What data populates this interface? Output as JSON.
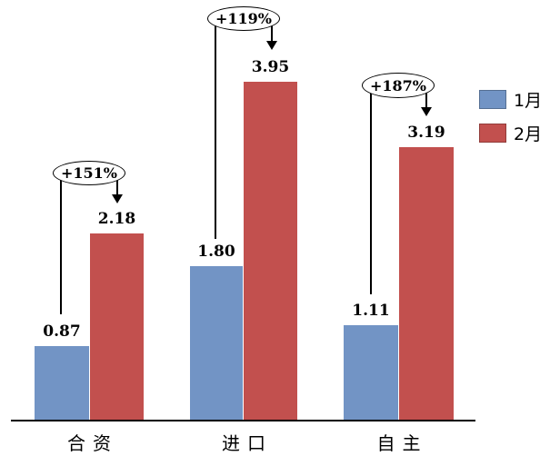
{
  "chart_data": {
    "type": "bar",
    "title": "",
    "categories": [
      "合资",
      "进口",
      "自主"
    ],
    "series": [
      {
        "name": "1月",
        "color": "#7294C5",
        "values": [
          0.87,
          1.8,
          1.11
        ]
      },
      {
        "name": "2月",
        "color": "#C2504E",
        "values": [
          2.18,
          3.95,
          3.19
        ]
      }
    ],
    "annotations": [
      {
        "category": "合资",
        "label": "+151%"
      },
      {
        "category": "进口",
        "label": "+119%"
      },
      {
        "category": "自主",
        "label": "+187%"
      }
    ],
    "value_labels": {
      "jan": [
        "0.87",
        "1.80",
        "1.11"
      ],
      "feb": [
        "2.18",
        "3.95",
        "3.19"
      ]
    },
    "legend_position": "right",
    "ylim": [
      0,
      4.2
    ],
    "grid": false,
    "y_axis_visible": false,
    "x_axis_visible": true
  },
  "groups": [
    {
      "category": "合资",
      "annotation": "+151%",
      "jan_label": "0.87",
      "feb_label": "2.18"
    },
    {
      "category": "进口",
      "annotation": "+119%",
      "jan_label": "1.80",
      "feb_label": "3.95"
    },
    {
      "category": "自主",
      "annotation": "+187%",
      "jan_label": "1.11",
      "feb_label": "3.19"
    }
  ],
  "legend": {
    "items": [
      {
        "label": "1月",
        "color": "#7294C5"
      },
      {
        "label": "2月",
        "color": "#C2504E"
      }
    ]
  }
}
